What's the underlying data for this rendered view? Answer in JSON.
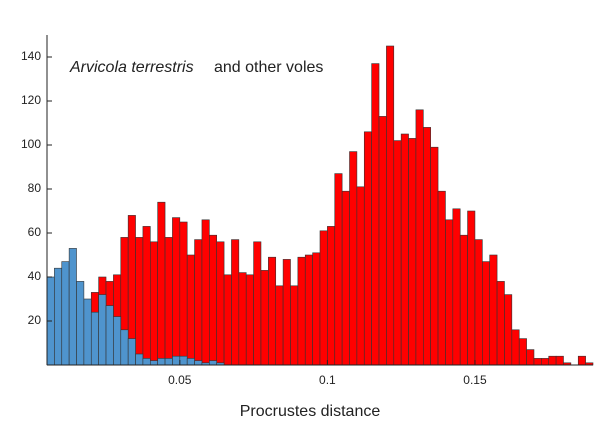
{
  "chart_data": {
    "type": "histogram",
    "annotation": {
      "species": "Arvicola terrestris",
      "text": "and other voles"
    },
    "x_label": "Procrustes distance",
    "bins": [
      0.005,
      0.0075,
      0.01,
      0.0125,
      0.015,
      0.0175,
      0.02,
      0.0225,
      0.025,
      0.0275,
      0.03,
      0.0325,
      0.035,
      0.0375,
      0.04,
      0.0425,
      0.045,
      0.0475,
      0.05,
      0.0525,
      0.055,
      0.0575,
      0.06,
      0.0625,
      0.065,
      0.0675,
      0.07,
      0.0725,
      0.075,
      0.0775,
      0.08,
      0.0825,
      0.085,
      0.0875,
      0.09,
      0.0925,
      0.095,
      0.0975,
      0.1,
      0.1025,
      0.105,
      0.1075,
      0.11,
      0.1125,
      0.115,
      0.1175,
      0.12,
      0.1225,
      0.125,
      0.1275,
      0.13,
      0.1325,
      0.135,
      0.1375,
      0.14,
      0.1425,
      0.145,
      0.1475,
      0.15,
      0.1525,
      0.155,
      0.1575,
      0.16,
      0.1625,
      0.165,
      0.1675,
      0.17,
      0.1725,
      0.175,
      0.1775,
      0.18,
      0.1825,
      0.185,
      0.1875,
      0.19
    ],
    "series": [
      {
        "color": "#ff0000",
        "values": [
          0,
          0,
          0,
          0,
          0,
          28,
          33,
          40,
          38,
          41,
          58,
          68,
          58,
          63,
          56,
          74,
          58,
          67,
          65,
          50,
          57,
          66,
          59,
          56,
          41,
          57,
          42,
          41,
          56,
          43,
          49,
          36,
          48,
          36,
          49,
          50,
          51,
          61,
          63,
          87,
          79,
          97,
          81,
          106,
          137,
          113,
          145,
          102,
          105,
          103,
          116,
          108,
          99,
          79,
          66,
          71,
          59,
          70,
          57,
          47,
          50,
          38,
          32,
          16,
          12,
          7,
          3,
          3,
          4,
          4,
          1,
          0,
          4,
          1
        ]
      },
      {
        "color": "#4f94cd",
        "values": [
          40,
          44,
          47,
          53,
          38,
          30,
          24,
          32,
          27,
          22,
          16,
          12,
          5,
          3,
          2,
          3,
          3,
          4,
          4,
          3,
          2,
          1,
          2,
          1,
          0,
          0,
          0,
          0,
          0,
          0,
          0,
          0,
          0,
          0,
          0,
          0,
          0,
          0,
          0,
          0,
          0,
          0,
          0,
          0,
          0,
          0,
          0,
          0,
          0,
          0,
          0,
          0,
          0,
          0,
          0,
          0,
          0,
          0,
          0,
          0,
          0,
          0,
          0,
          0,
          0,
          0,
          0,
          0,
          0,
          0,
          0,
          0,
          0,
          0
        ]
      }
    ],
    "xlim": [
      0.005,
      0.19
    ],
    "xticks": [
      0.05,
      0.1,
      0.15
    ],
    "ylim": [
      0,
      150
    ],
    "yticks": [
      20,
      40,
      60,
      80,
      100,
      120,
      140
    ]
  }
}
